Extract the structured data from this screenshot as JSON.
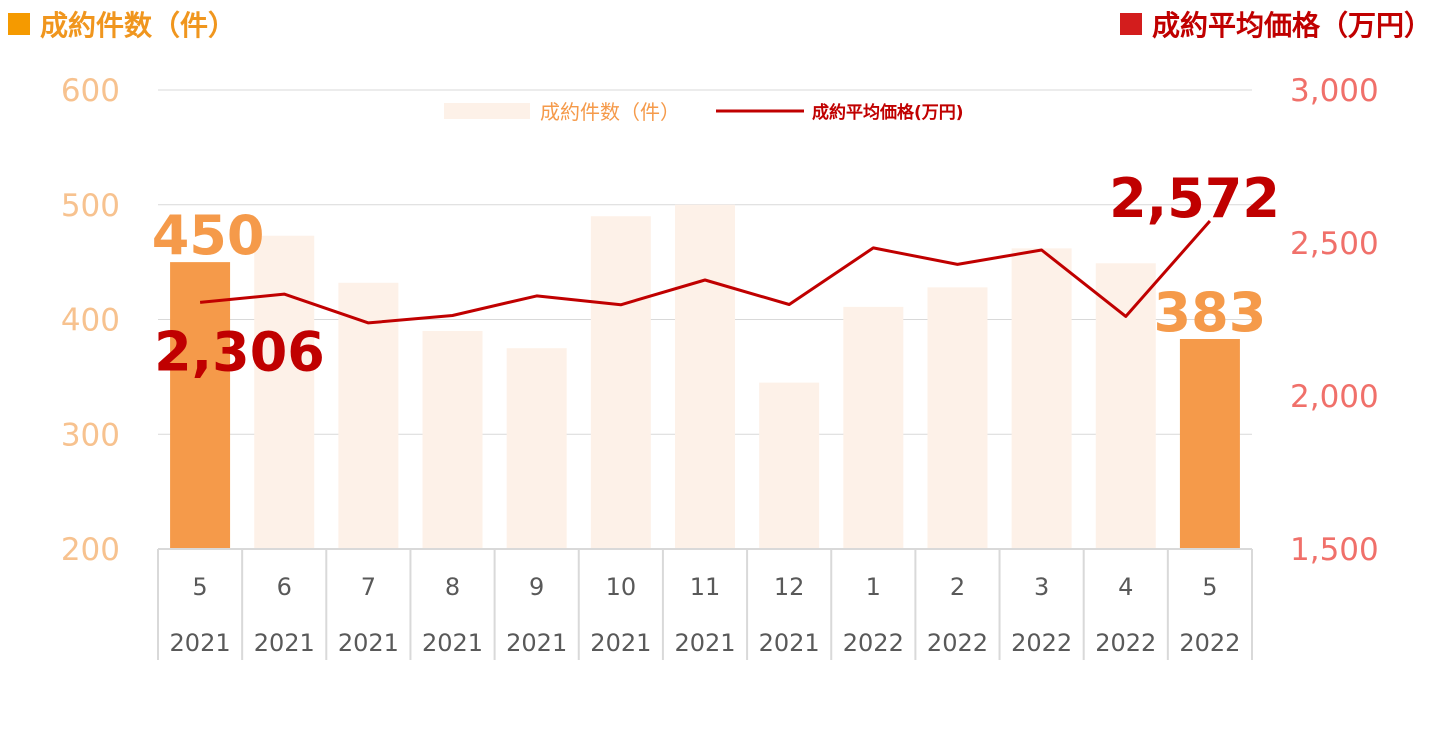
{
  "titles": {
    "left": "成約件数（件）",
    "right": "成約平均価格（万円）"
  },
  "colors": {
    "bar_highlight": "#f59a4a",
    "bar_muted": "#fdf1e8",
    "line": "#c00000",
    "left_axis_text": "#f7c28f",
    "right_axis_text": "#f0706a",
    "category_text": "#595959",
    "grid": "#d9d9d9",
    "left_title_square": "#f59a00",
    "right_title_square": "#d31d1d"
  },
  "chart_data": {
    "type": "bar",
    "combo": "bar+line",
    "categories": [
      {
        "month": "5",
        "year": "2021"
      },
      {
        "month": "6",
        "year": "2021"
      },
      {
        "month": "7",
        "year": "2021"
      },
      {
        "month": "8",
        "year": "2021"
      },
      {
        "month": "9",
        "year": "2021"
      },
      {
        "month": "10",
        "year": "2021"
      },
      {
        "month": "11",
        "year": "2021"
      },
      {
        "month": "12",
        "year": "2021"
      },
      {
        "month": "1",
        "year": "2022"
      },
      {
        "month": "2",
        "year": "2022"
      },
      {
        "month": "3",
        "year": "2022"
      },
      {
        "month": "4",
        "year": "2022"
      },
      {
        "month": "5",
        "year": "2022"
      }
    ],
    "series": [
      {
        "name": "成約件数（件）",
        "type": "bar",
        "axis": "left",
        "values": [
          450,
          473,
          432,
          390,
          375,
          490,
          500,
          345,
          411,
          428,
          462,
          449,
          383
        ],
        "highlight": [
          0,
          12
        ]
      },
      {
        "name": "成約平均価格(万円)",
        "type": "line",
        "axis": "right",
        "values": [
          2306,
          2333,
          2239,
          2263,
          2327,
          2298,
          2379,
          2299,
          2484,
          2430,
          2477,
          2260,
          2572
        ]
      }
    ],
    "y_left": {
      "min": 200,
      "max": 600,
      "ticks": [
        "200",
        "300",
        "400",
        "500",
        "600"
      ]
    },
    "y_right": {
      "min": 1500,
      "max": 3000,
      "ticks": [
        "1,500",
        "2,000",
        "2,500",
        "3,000"
      ]
    },
    "data_labels": [
      {
        "series": 0,
        "index": 0,
        "text": "450"
      },
      {
        "series": 0,
        "index": 12,
        "text": "383"
      },
      {
        "series": 1,
        "index": 0,
        "text": "2,306"
      },
      {
        "series": 1,
        "index": 12,
        "text": "2,572"
      }
    ],
    "legend": {
      "position": "top-center",
      "bar_label": "成約件数（件）",
      "line_label": "成約平均価格(万円)"
    },
    "grid": true
  }
}
